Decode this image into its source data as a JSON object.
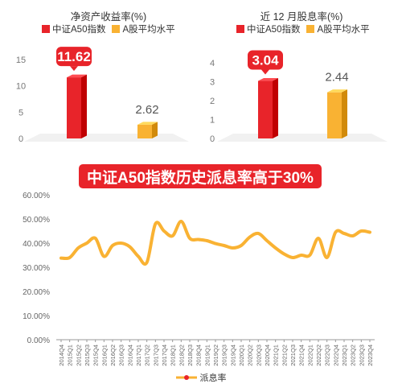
{
  "chart_data": [
    {
      "type": "bar",
      "title": "净资产收益率(%)",
      "categories": [
        "中证A50指数",
        "A股平均水平"
      ],
      "series": [
        {
          "name": "中证A50指数",
          "values": [
            11.62,
            null
          ],
          "color": "#e8242a"
        },
        {
          "name": "A股平均水平",
          "values": [
            null,
            2.62
          ],
          "color": "#f9b233"
        }
      ],
      "values": [
        11.62,
        2.62
      ],
      "ylim": [
        0,
        15
      ],
      "yticks": [
        "0",
        "5",
        "10",
        "15"
      ],
      "data_labels": [
        "11.62",
        "2.62"
      ],
      "legend_position": "top"
    },
    {
      "type": "bar",
      "title": "近 12 月股息率(%)",
      "categories": [
        "中证A50指数",
        "A股平均水平"
      ],
      "series": [
        {
          "name": "中证A50指数",
          "values": [
            3.04,
            null
          ],
          "color": "#e8242a"
        },
        {
          "name": "A股平均水平",
          "values": [
            null,
            2.44
          ],
          "color": "#f9b233"
        }
      ],
      "values": [
        3.04,
        2.44
      ],
      "ylim": [
        0,
        4
      ],
      "yticks": [
        "0",
        "1",
        "2",
        "3",
        "4"
      ],
      "data_labels": [
        "3.04",
        "2.44"
      ],
      "legend_position": "top"
    },
    {
      "type": "line",
      "title": "中证A50指数历史派息率高于30%",
      "series": [
        {
          "name": "派息率",
          "color": "#f9b233",
          "marker_color": "#e8242a",
          "values": [
            33.8,
            34.0,
            38.0,
            40.0,
            42.0,
            34.5,
            39.0,
            40.0,
            38.5,
            34.5,
            32.0,
            48.0,
            45.0,
            43.0,
            49.0,
            42.0,
            41.5,
            41.0,
            39.8,
            39.0,
            38.0,
            39.0,
            42.5,
            44.0,
            41.0,
            38.0,
            35.5,
            34.0,
            35.0,
            35.0,
            42.0,
            34.0,
            44.5,
            44.0,
            43.0,
            45.0,
            44.5
          ]
        }
      ],
      "ylim": [
        0,
        60
      ],
      "yticks": [
        "0.00%",
        "10.00%",
        "20.00%",
        "30.00%",
        "40.00%",
        "50.00%",
        "60.00%"
      ],
      "categories": [
        "2014Q4",
        "2015Q1",
        "2015Q2",
        "2015Q3",
        "2015Q4",
        "2016Q1",
        "2016Q2",
        "2016Q3",
        "2016Q4",
        "2017Q1",
        "2017Q2",
        "2017Q3",
        "2017Q4",
        "2018Q1",
        "2018Q2",
        "2018Q3",
        "2018Q4",
        "2019Q1",
        "2019Q2",
        "2019Q3",
        "2019Q4",
        "2020Q1",
        "2020Q2",
        "2020Q3",
        "2020Q4",
        "2021Q1",
        "2021Q2",
        "2021Q3",
        "2021Q4",
        "2022Q1",
        "2022Q2",
        "2022Q3",
        "2022Q4",
        "2023Q1",
        "2023Q2",
        "2023Q3",
        "2023Q4"
      ],
      "legend_position": "bottom",
      "grid": false
    }
  ],
  "text": {
    "banner": "中证A50指数历史派息率高于30%",
    "legend_a50": "中证A50指数",
    "legend_avg": "A股平均水平",
    "line_legend": "派息率"
  },
  "colors": {
    "red": "#e8242a",
    "orange": "#f9b233"
  }
}
